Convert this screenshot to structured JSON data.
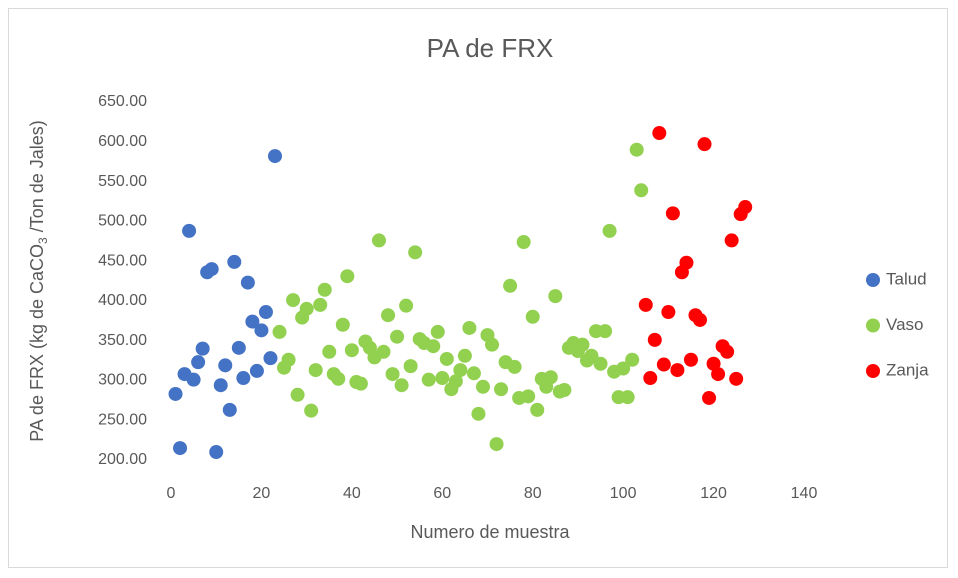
{
  "chart_data": {
    "type": "scatter",
    "title": "PA de FRX",
    "x_label": "Numero de muestra",
    "y_label": [
      "PA de FRX (kg de CaCO",
      "3",
      " /Ton de Jales)"
    ],
    "xlim": [
      0,
      140
    ],
    "xticks": [
      0,
      20,
      40,
      60,
      80,
      100,
      120,
      140
    ],
    "ylim": [
      200,
      650
    ],
    "yticks": [
      {
        "value": 200,
        "label": "200.00"
      },
      {
        "value": 250,
        "label": "250.00"
      },
      {
        "value": 300,
        "label": "300.00"
      },
      {
        "value": 350,
        "label": "350.00"
      },
      {
        "value": 400,
        "label": "400.00"
      },
      {
        "value": 450,
        "label": "450.00"
      },
      {
        "value": 500,
        "label": "500.00"
      },
      {
        "value": 550,
        "label": "550.00"
      },
      {
        "value": 600,
        "label": "600.00"
      },
      {
        "value": 650,
        "label": "650.00"
      }
    ],
    "grid": false,
    "legend": "right",
    "series": [
      {
        "name": "Talud",
        "color": "#4472c4",
        "x": [
          1,
          2,
          3,
          4,
          5,
          6,
          7,
          8,
          9,
          10,
          11,
          12,
          13,
          14,
          15,
          16,
          17,
          18,
          19,
          20,
          21,
          22,
          23
        ],
        "values": [
          283,
          215,
          308,
          488,
          301,
          323,
          340,
          436,
          440,
          210,
          294,
          319,
          263,
          449,
          341,
          303,
          423,
          374,
          312,
          363,
          386,
          328,
          582
        ]
      },
      {
        "name": "Vaso",
        "color": "#92d050",
        "x": [
          24,
          25,
          26,
          27,
          28,
          29,
          30,
          31,
          32,
          33,
          34,
          35,
          36,
          37,
          38,
          39,
          40,
          41,
          42,
          43,
          44,
          45,
          46,
          47,
          48,
          49,
          50,
          51,
          52,
          53,
          54,
          55,
          56,
          57,
          58,
          59,
          60,
          61,
          62,
          63,
          64,
          65,
          66,
          67,
          68,
          69,
          70,
          71,
          72,
          73,
          74,
          75,
          76,
          77,
          78,
          79,
          80,
          81,
          82,
          83,
          84,
          85,
          86,
          87,
          88,
          89,
          90,
          91,
          92,
          93,
          94,
          95,
          96,
          97,
          98,
          99,
          100,
          101,
          102,
          103,
          104
        ],
        "values": [
          361,
          316,
          326,
          401,
          282,
          379,
          390,
          262,
          313,
          395,
          414,
          336,
          308,
          302,
          370,
          431,
          338,
          298,
          296,
          349,
          341,
          329,
          476,
          336,
          382,
          308,
          355,
          294,
          394,
          318,
          461,
          352,
          347,
          301,
          343,
          361,
          303,
          327,
          289,
          299,
          313,
          331,
          366,
          309,
          258,
          292,
          357,
          345,
          220,
          289,
          323,
          419,
          317,
          278,
          474,
          280,
          380,
          263,
          302,
          292,
          304,
          406,
          286,
          288,
          341,
          347,
          337,
          345,
          325,
          331,
          362,
          321,
          362,
          488,
          311,
          279,
          315,
          279,
          326,
          590,
          539
        ]
      },
      {
        "name": "Zanja",
        "color": "#ff0000",
        "x": [
          105,
          106,
          107,
          108,
          109,
          110,
          111,
          112,
          113,
          114,
          115,
          116,
          117,
          118,
          119,
          120,
          121,
          122,
          123,
          124,
          125,
          126,
          127
        ],
        "values": [
          395,
          303,
          351,
          611,
          320,
          386,
          510,
          313,
          436,
          448,
          326,
          382,
          376,
          597,
          278,
          321,
          308,
          343,
          336,
          476,
          302,
          509,
          518
        ]
      }
    ]
  }
}
